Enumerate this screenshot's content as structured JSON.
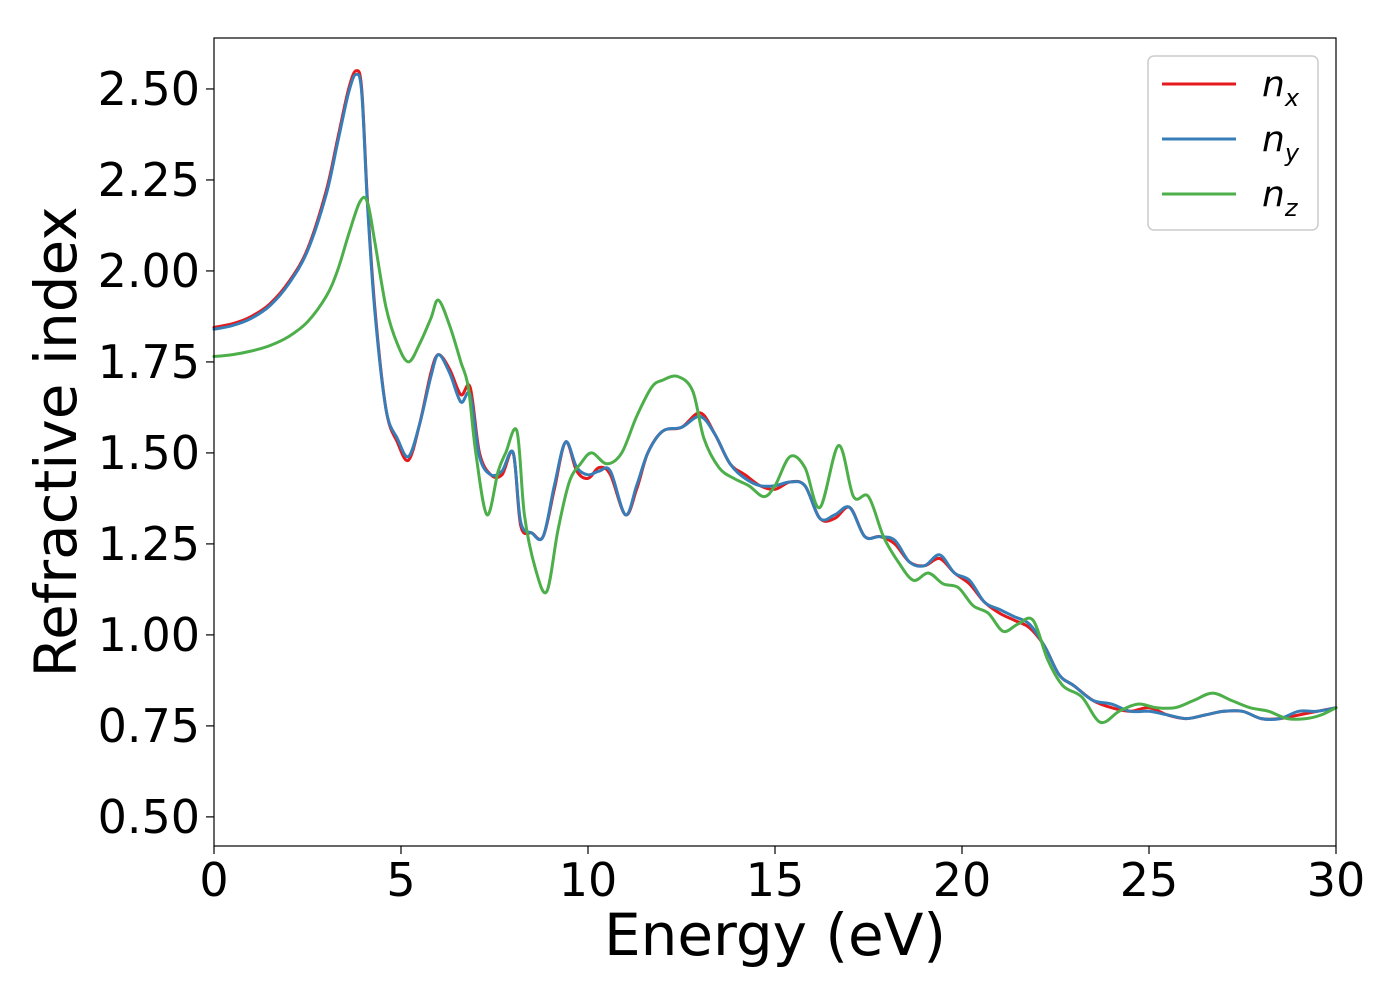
{
  "chart_data": {
    "type": "line",
    "title": "",
    "xlabel": "Energy (eV)",
    "ylabel": "Refractive index",
    "xlim": [
      0,
      30
    ],
    "ylim": [
      0.42,
      2.64
    ],
    "xticks": [
      "0",
      "5",
      "10",
      "15",
      "20",
      "25",
      "30"
    ],
    "yticks": [
      "0.50",
      "0.75",
      "1.00",
      "1.25",
      "1.50",
      "1.75",
      "2.00",
      "2.25",
      "2.50"
    ],
    "grid": false,
    "legend_position": "top-right",
    "series": [
      {
        "name": "n_x",
        "legend_main": "n",
        "legend_sub": "x",
        "color": "#e41a1c",
        "x": [
          0,
          0.5,
          1,
          1.5,
          2,
          2.5,
          3,
          3.3,
          3.6,
          3.8,
          3.95,
          4.1,
          4.3,
          4.6,
          4.9,
          5.2,
          5.5,
          5.8,
          6.0,
          6.3,
          6.6,
          6.85,
          7.1,
          7.4,
          7.7,
          8.0,
          8.2,
          8.5,
          8.8,
          9.1,
          9.4,
          9.7,
          10.0,
          10.3,
          10.6,
          11.0,
          11.3,
          11.6,
          12.0,
          12.5,
          13.0,
          13.4,
          13.8,
          14.2,
          14.6,
          15.0,
          15.4,
          15.8,
          16.2,
          16.6,
          17.0,
          17.4,
          17.8,
          18.2,
          18.6,
          19.0,
          19.4,
          19.8,
          20.2,
          20.6,
          21.0,
          21.4,
          21.8,
          22.2,
          22.6,
          23.0,
          23.5,
          24.0,
          24.5,
          25.0,
          25.5,
          26.0,
          26.5,
          27.0,
          27.5,
          28.0,
          28.5,
          29.0,
          29.5,
          30.0
        ],
        "values": [
          1.845,
          1.855,
          1.875,
          1.91,
          1.97,
          2.06,
          2.22,
          2.36,
          2.5,
          2.55,
          2.5,
          2.2,
          1.9,
          1.62,
          1.53,
          1.48,
          1.58,
          1.72,
          1.77,
          1.73,
          1.66,
          1.68,
          1.5,
          1.44,
          1.44,
          1.5,
          1.3,
          1.28,
          1.27,
          1.4,
          1.53,
          1.45,
          1.43,
          1.46,
          1.44,
          1.33,
          1.4,
          1.5,
          1.56,
          1.57,
          1.61,
          1.55,
          1.47,
          1.44,
          1.41,
          1.4,
          1.42,
          1.41,
          1.32,
          1.32,
          1.35,
          1.27,
          1.27,
          1.25,
          1.2,
          1.19,
          1.21,
          1.17,
          1.14,
          1.09,
          1.06,
          1.04,
          1.02,
          0.97,
          0.89,
          0.86,
          0.82,
          0.8,
          0.79,
          0.8,
          0.78,
          0.77,
          0.78,
          0.79,
          0.79,
          0.77,
          0.77,
          0.78,
          0.79,
          0.8
        ]
      },
      {
        "name": "n_y",
        "legend_main": "n",
        "legend_sub": "y",
        "color": "#377eb8",
        "x": [
          0,
          0.5,
          1,
          1.5,
          2,
          2.5,
          3,
          3.3,
          3.6,
          3.8,
          3.95,
          4.1,
          4.3,
          4.6,
          4.9,
          5.2,
          5.5,
          5.8,
          6.0,
          6.3,
          6.6,
          6.85,
          7.1,
          7.4,
          7.7,
          8.0,
          8.2,
          8.5,
          8.8,
          9.1,
          9.4,
          9.7,
          10.0,
          10.3,
          10.6,
          11.0,
          11.3,
          11.6,
          12.0,
          12.5,
          13.0,
          13.4,
          13.8,
          14.2,
          14.6,
          15.0,
          15.4,
          15.8,
          16.2,
          16.6,
          17.0,
          17.4,
          17.8,
          18.2,
          18.6,
          19.0,
          19.4,
          19.8,
          20.2,
          20.6,
          21.0,
          21.4,
          21.8,
          22.2,
          22.6,
          23.0,
          23.5,
          24.0,
          24.5,
          25.0,
          25.5,
          26.0,
          26.5,
          27.0,
          27.5,
          28.0,
          28.5,
          29.0,
          29.5,
          30.0
        ],
        "values": [
          1.84,
          1.85,
          1.87,
          1.905,
          1.965,
          2.055,
          2.21,
          2.35,
          2.49,
          2.54,
          2.49,
          2.19,
          1.89,
          1.62,
          1.54,
          1.49,
          1.58,
          1.71,
          1.77,
          1.72,
          1.64,
          1.66,
          1.49,
          1.44,
          1.45,
          1.5,
          1.31,
          1.28,
          1.27,
          1.41,
          1.53,
          1.46,
          1.44,
          1.45,
          1.45,
          1.33,
          1.41,
          1.5,
          1.56,
          1.57,
          1.6,
          1.55,
          1.47,
          1.43,
          1.41,
          1.41,
          1.42,
          1.41,
          1.32,
          1.33,
          1.35,
          1.27,
          1.27,
          1.26,
          1.2,
          1.19,
          1.22,
          1.17,
          1.15,
          1.09,
          1.07,
          1.05,
          1.03,
          0.97,
          0.89,
          0.86,
          0.82,
          0.81,
          0.79,
          0.79,
          0.78,
          0.77,
          0.78,
          0.79,
          0.79,
          0.77,
          0.77,
          0.79,
          0.79,
          0.8
        ]
      },
      {
        "name": "n_z",
        "legend_main": "n",
        "legend_sub": "z",
        "color": "#4daf4a",
        "x": [
          0,
          0.5,
          1,
          1.5,
          2,
          2.5,
          3,
          3.3,
          3.6,
          3.9,
          4.1,
          4.3,
          4.6,
          4.9,
          5.2,
          5.5,
          5.8,
          6.0,
          6.3,
          6.6,
          6.8,
          7.0,
          7.3,
          7.6,
          7.8,
          8.1,
          8.3,
          8.6,
          8.9,
          9.2,
          9.5,
          9.8,
          10.1,
          10.5,
          10.9,
          11.3,
          11.7,
          12.0,
          12.4,
          12.8,
          13.1,
          13.5,
          13.9,
          14.3,
          14.7,
          15.0,
          15.4,
          15.8,
          16.2,
          16.7,
          17.1,
          17.5,
          17.9,
          18.3,
          18.7,
          19.1,
          19.5,
          19.9,
          20.3,
          20.7,
          21.1,
          21.5,
          21.9,
          22.3,
          22.7,
          23.2,
          23.7,
          24.2,
          24.7,
          25.2,
          25.7,
          26.2,
          26.7,
          27.2,
          27.7,
          28.2,
          28.7,
          29.2,
          29.6,
          30.0
        ],
        "values": [
          1.765,
          1.77,
          1.78,
          1.795,
          1.82,
          1.86,
          1.93,
          2.0,
          2.1,
          2.19,
          2.19,
          2.08,
          1.9,
          1.8,
          1.75,
          1.8,
          1.87,
          1.92,
          1.85,
          1.75,
          1.68,
          1.5,
          1.33,
          1.45,
          1.5,
          1.56,
          1.33,
          1.18,
          1.12,
          1.29,
          1.42,
          1.47,
          1.5,
          1.47,
          1.5,
          1.6,
          1.68,
          1.7,
          1.71,
          1.67,
          1.54,
          1.46,
          1.43,
          1.41,
          1.38,
          1.41,
          1.49,
          1.46,
          1.35,
          1.52,
          1.38,
          1.38,
          1.27,
          1.2,
          1.15,
          1.17,
          1.14,
          1.13,
          1.08,
          1.06,
          1.01,
          1.03,
          1.04,
          0.93,
          0.86,
          0.83,
          0.76,
          0.79,
          0.81,
          0.8,
          0.8,
          0.82,
          0.84,
          0.82,
          0.8,
          0.79,
          0.77,
          0.77,
          0.78,
          0.8
        ]
      }
    ]
  }
}
